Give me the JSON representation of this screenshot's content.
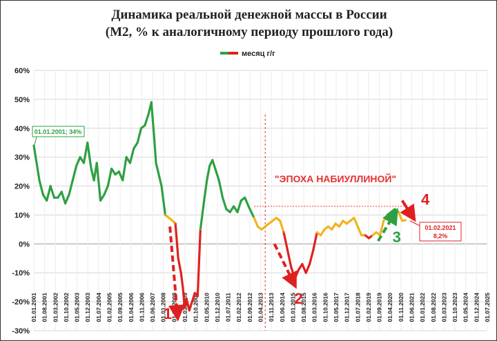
{
  "chart_data": {
    "type": "line",
    "title": "Динамика реальной денежной массы в России",
    "subtitle": "(М2, % к аналогичному периоду прошлого года)",
    "legend": {
      "label": "месяц г/г",
      "position": "top"
    },
    "ylim": [
      -30,
      60
    ],
    "yticks": [
      "60%",
      "50%",
      "40%",
      "30%",
      "20%",
      "10%",
      "0%",
      "-10%",
      "-20%",
      "-30%"
    ],
    "ytick_values": [
      60,
      50,
      40,
      30,
      20,
      10,
      0,
      -10,
      -20,
      -30
    ],
    "xtick_labels": [
      "01.01.2001",
      "01.08.2001",
      "01.03.2002",
      "01.10.2002",
      "01.05.2003",
      "01.12.2003",
      "01.07.2004",
      "01.02.2005",
      "01.09.2005",
      "01.04.2006",
      "01.11.2006",
      "01.06.2007",
      "01.01.2008",
      "01.08.2008",
      "01.03.2009",
      "01.10.2009",
      "01.05.2010",
      "01.12.2010",
      "01.07.2011",
      "01.02.2012",
      "01.09.2012",
      "01.04.2013",
      "01.11.2013",
      "01.06.2014",
      "01.01.2015",
      "01.08.2015",
      "01.03.2016",
      "01.10.2016",
      "01.05.2017",
      "01.12.2017",
      "01.07.2018",
      "01.02.2019",
      "01.09.2019",
      "01.04.2020",
      "01.11.2020",
      "01.06.2021",
      "01.01.2022",
      "01.08.2022",
      "01.03.2023",
      "01.10.2023",
      "01.05.2024",
      "01.12.2024",
      "01.07.2025"
    ],
    "grid": true,
    "series": [
      {
        "name": "месяц г/г",
        "x": [
          2001.0,
          2001.3,
          2001.5,
          2001.7,
          2001.9,
          2002.1,
          2002.3,
          2002.5,
          2002.7,
          2002.9,
          2003.1,
          2003.3,
          2003.5,
          2003.7,
          2003.9,
          2004.1,
          2004.25,
          2004.4,
          2004.6,
          2004.8,
          2005.0,
          2005.2,
          2005.4,
          2005.6,
          2005.8,
          2006.0,
          2006.2,
          2006.4,
          2006.6,
          2006.8,
          2007.0,
          2007.2,
          2007.35,
          2007.5,
          2007.6,
          2007.75,
          2007.9,
          2008.1,
          2008.3,
          2008.5,
          2008.65,
          2008.8,
          2008.95,
          2009.05,
          2009.15,
          2009.25,
          2009.4,
          2009.55,
          2009.7,
          2009.85,
          2010.0,
          2010.2,
          2010.35,
          2010.5,
          2010.65,
          2010.8,
          2011.0,
          2011.2,
          2011.4,
          2011.6,
          2011.8,
          2012.0,
          2012.2,
          2012.4,
          2012.6,
          2012.75,
          2012.9,
          2013.1,
          2013.3,
          2013.5,
          2013.7,
          2013.9,
          2014.1,
          2014.3,
          2014.5,
          2014.7,
          2014.9,
          2015.1,
          2015.3,
          2015.5,
          2015.7,
          2015.9,
          2016.1,
          2016.3,
          2016.5,
          2016.7,
          2016.9,
          2017.1,
          2017.3,
          2017.5,
          2017.7,
          2017.9,
          2018.1,
          2018.3,
          2018.5,
          2018.7,
          2018.9,
          2019.1,
          2019.3,
          2019.5,
          2019.7,
          2019.9,
          2020.1,
          2020.3,
          2020.5,
          2020.7,
          2020.9,
          2021.08
        ],
        "values": [
          34,
          22,
          17,
          15,
          20,
          16,
          16,
          18,
          14,
          17,
          22,
          27,
          30,
          28,
          35,
          26,
          22,
          28,
          15,
          17,
          20,
          26,
          24,
          25,
          22,
          30,
          28,
          33,
          35,
          40,
          41,
          45,
          49,
          37,
          28,
          24,
          20,
          10,
          9,
          8,
          7,
          -5,
          -10,
          -15,
          -22,
          -19,
          -23,
          -20,
          -17,
          -18,
          5,
          15,
          22,
          27,
          29,
          26,
          22,
          16,
          12,
          11,
          13,
          11,
          15,
          16,
          13,
          11,
          9,
          6,
          5,
          6,
          7,
          8,
          9,
          8,
          4,
          -2,
          -8,
          -12,
          -9,
          -7,
          -10,
          -7,
          -2,
          4,
          3,
          5,
          6,
          5,
          7,
          6,
          8,
          7,
          8,
          9,
          6,
          3,
          3,
          2,
          3,
          4,
          3,
          8,
          10,
          11,
          12,
          11,
          8,
          8.2
        ],
        "color_high": "#2ea043",
        "color_mid": "#f1b41c",
        "color_low": "#e02020"
      }
    ],
    "annotations": [
      {
        "type": "callout",
        "x": 2001.0,
        "y": 34,
        "label": "01.01.2001; 34%",
        "color": "#2ea043"
      },
      {
        "type": "callout",
        "x": 2021.08,
        "y": 8.2,
        "label": "01.02.2021\n8,2%",
        "color": "#e02020"
      },
      {
        "type": "text",
        "label": "\"ЭПОХА НАБИУЛЛИНОЙ\"",
        "color": "#e53030"
      },
      {
        "type": "vline",
        "x": 2013.5,
        "color": "#e53030"
      },
      {
        "type": "hline",
        "y": 13,
        "x_from": 2012.9,
        "x_to": 2021.0,
        "color": "#e53030"
      },
      {
        "type": "arrow",
        "label": "1",
        "color": "#e02020",
        "x_from": 2008.35,
        "y_from": 6,
        "x_to": 2008.75,
        "y_to": -24
      },
      {
        "type": "arrow",
        "label": "2",
        "color": "#e02020",
        "x_from": 2014.0,
        "y_from": 0,
        "x_to": 2015.0,
        "y_to": -13
      },
      {
        "type": "arrow",
        "label": "3",
        "color": "#2ea043",
        "x_from": 2019.6,
        "y_from": 1,
        "x_to": 2020.45,
        "y_to": 10
      },
      {
        "type": "arrow",
        "label": "4",
        "color": "#e02020",
        "x_from": 2020.9,
        "y_from": 15,
        "x_to": 2021.4,
        "y_to": 10
      }
    ]
  }
}
